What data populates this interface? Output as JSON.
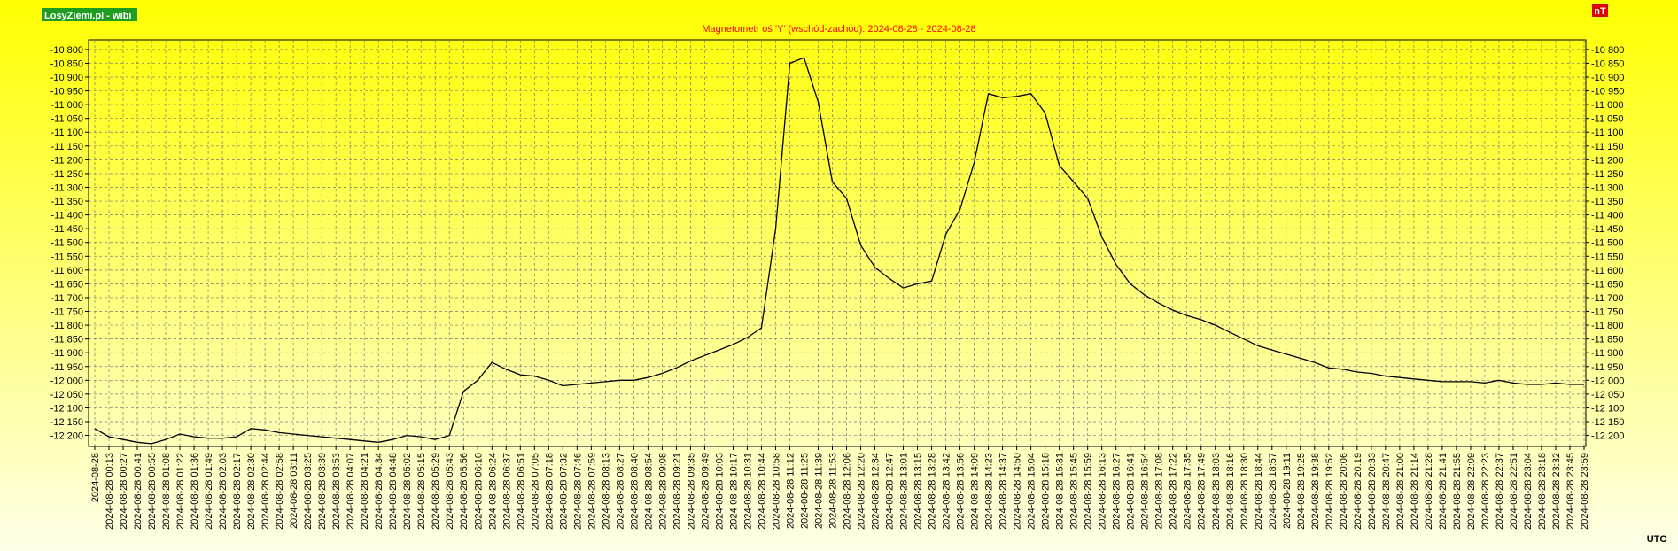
{
  "chart_data": {
    "type": "line",
    "brand": "LosyZiemi.pl - wibi",
    "title": "Magnetometr oś 'Y' (wschód-zachód): 2024-08-28 - 2024-08-28",
    "unit_label": "nT",
    "x_label": "UTC",
    "color": "#000000",
    "grid": true,
    "x": [
      "2024-08-28",
      "2024-08-28 00:13",
      "2024-08-28 00:27",
      "2024-08-28 00:41",
      "2024-08-28 00:55",
      "2024-08-28 01:08",
      "2024-08-28 01:22",
      "2024-08-28 01:36",
      "2024-08-28 01:49",
      "2024-08-28 02:03",
      "2024-08-28 02:17",
      "2024-08-28 02:30",
      "2024-08-28 02:44",
      "2024-08-28 02:58",
      "2024-08-28 03:11",
      "2024-08-28 03:25",
      "2024-08-28 03:39",
      "2024-08-28 03:53",
      "2024-08-28 04:07",
      "2024-08-28 04:21",
      "2024-08-28 04:34",
      "2024-08-28 04:48",
      "2024-08-28 05:02",
      "2024-08-28 05:15",
      "2024-08-28 05:29",
      "2024-08-28 05:43",
      "2024-08-28 05:56",
      "2024-08-28 06:10",
      "2024-08-28 06:24",
      "2024-08-28 06:37",
      "2024-08-28 06:51",
      "2024-08-28 07:05",
      "2024-08-28 07:18",
      "2024-08-28 07:32",
      "2024-08-28 07:46",
      "2024-08-28 07:59",
      "2024-08-28 08:13",
      "2024-08-28 08:27",
      "2024-08-28 08:40",
      "2024-08-28 08:54",
      "2024-08-28 09:08",
      "2024-08-28 09:21",
      "2024-08-28 09:35",
      "2024-08-28 09:49",
      "2024-08-28 10:03",
      "2024-08-28 10:17",
      "2024-08-28 10:31",
      "2024-08-28 10:44",
      "2024-08-28 10:58",
      "2024-08-28 11:12",
      "2024-08-28 11:25",
      "2024-08-28 11:39",
      "2024-08-28 11:53",
      "2024-08-28 12:06",
      "2024-08-28 12:20",
      "2024-08-28 12:34",
      "2024-08-28 12:47",
      "2024-08-28 13:01",
      "2024-08-28 13:15",
      "2024-08-28 13:28",
      "2024-08-28 13:42",
      "2024-08-28 13:56",
      "2024-08-28 14:09",
      "2024-08-28 14:23",
      "2024-08-28 14:37",
      "2024-08-28 14:50",
      "2024-08-28 15:04",
      "2024-08-28 15:18",
      "2024-08-28 15:31",
      "2024-08-28 15:45",
      "2024-08-28 15:59",
      "2024-08-28 16:13",
      "2024-08-28 16:27",
      "2024-08-28 16:41",
      "2024-08-28 16:54",
      "2024-08-28 17:08",
      "2024-08-28 17:22",
      "2024-08-28 17:35",
      "2024-08-28 17:49",
      "2024-08-28 18:03",
      "2024-08-28 18:16",
      "2024-08-28 18:30",
      "2024-08-28 18:44",
      "2024-08-28 18:57",
      "2024-08-28 19:11",
      "2024-08-28 19:25",
      "2024-08-28 19:38",
      "2024-08-28 19:52",
      "2024-08-28 20:06",
      "2024-08-28 20:19",
      "2024-08-28 20:33",
      "2024-08-28 20:47",
      "2024-08-28 21:00",
      "2024-08-28 21:14",
      "2024-08-28 21:28",
      "2024-08-28 21:41",
      "2024-08-28 21:55",
      "2024-08-28 22:09",
      "2024-08-28 22:23",
      "2024-08-28 22:37",
      "2024-08-28 22:51",
      "2024-08-28 23:04",
      "2024-08-28 23:18",
      "2024-08-28 23:32",
      "2024-08-28 23:45",
      "2024-08-28 23:59"
    ],
    "values": [
      -12175,
      -12205,
      -12215,
      -12225,
      -12230,
      -12215,
      -12195,
      -12205,
      -12210,
      -12210,
      -12205,
      -12175,
      -12180,
      -12190,
      -12195,
      -12200,
      -12205,
      -12210,
      -12215,
      -12220,
      -12225,
      -12215,
      -12200,
      -12205,
      -12215,
      -12200,
      -12040,
      -12000,
      -11935,
      -11960,
      -11980,
      -11985,
      -12000,
      -12020,
      -12015,
      -12010,
      -12005,
      -12000,
      -12000,
      -11990,
      -11975,
      -11955,
      -11930,
      -11910,
      -11890,
      -11870,
      -11845,
      -11810,
      -11450,
      -10850,
      -10830,
      -10990,
      -11280,
      -11340,
      -11510,
      -11590,
      -11630,
      -11665,
      -11650,
      -11640,
      -11470,
      -11380,
      -11210,
      -10960,
      -10975,
      -10970,
      -10960,
      -11030,
      -11220,
      -11280,
      -11340,
      -11480,
      -11580,
      -11650,
      -11690,
      -11720,
      -11745,
      -11765,
      -11780,
      -11800,
      -11825,
      -11850,
      -11875,
      -11890,
      -11905,
      -11920,
      -11935,
      -11955,
      -11960,
      -11970,
      -11975,
      -11985,
      -11990,
      -11995,
      -12000,
      -12005,
      -12005,
      -12005,
      -12010,
      -12000,
      -12010,
      -12015,
      -12015,
      -12010,
      -12015,
      -12015
    ],
    "ylim": [
      -12240,
      -10765
    ],
    "yticks": [
      {
        "value": -10800,
        "label": "-10 800"
      },
      {
        "value": -10850,
        "label": "-10 850"
      },
      {
        "value": -10900,
        "label": "-10 900"
      },
      {
        "value": -10950,
        "label": "-10 950"
      },
      {
        "value": -11000,
        "label": "-11 000"
      },
      {
        "value": -11050,
        "label": "-11 050"
      },
      {
        "value": -11100,
        "label": "-11 100"
      },
      {
        "value": -11150,
        "label": "-11 150"
      },
      {
        "value": -11200,
        "label": "-11 200"
      },
      {
        "value": -11250,
        "label": "-11 250"
      },
      {
        "value": -11300,
        "label": "-11 300"
      },
      {
        "value": -11350,
        "label": "-11 350"
      },
      {
        "value": -11400,
        "label": "-11 400"
      },
      {
        "value": -11450,
        "label": "-11 450"
      },
      {
        "value": -11500,
        "label": "-11 500"
      },
      {
        "value": -11550,
        "label": "-11 550"
      },
      {
        "value": -11600,
        "label": "-11 600"
      },
      {
        "value": -11650,
        "label": "-11 650"
      },
      {
        "value": -11700,
        "label": "-11 700"
      },
      {
        "value": -11750,
        "label": "-11 750"
      },
      {
        "value": -11800,
        "label": "-11 800"
      },
      {
        "value": -11850,
        "label": "-11 850"
      },
      {
        "value": -11900,
        "label": "-11 900"
      },
      {
        "value": -11950,
        "label": "-11 950"
      },
      {
        "value": -12000,
        "label": "-12 000"
      },
      {
        "value": -12050,
        "label": "-12 050"
      },
      {
        "value": -12100,
        "label": "-12 100"
      },
      {
        "value": -12150,
        "label": "-12 150"
      },
      {
        "value": -12200,
        "label": "-12 200"
      }
    ]
  }
}
